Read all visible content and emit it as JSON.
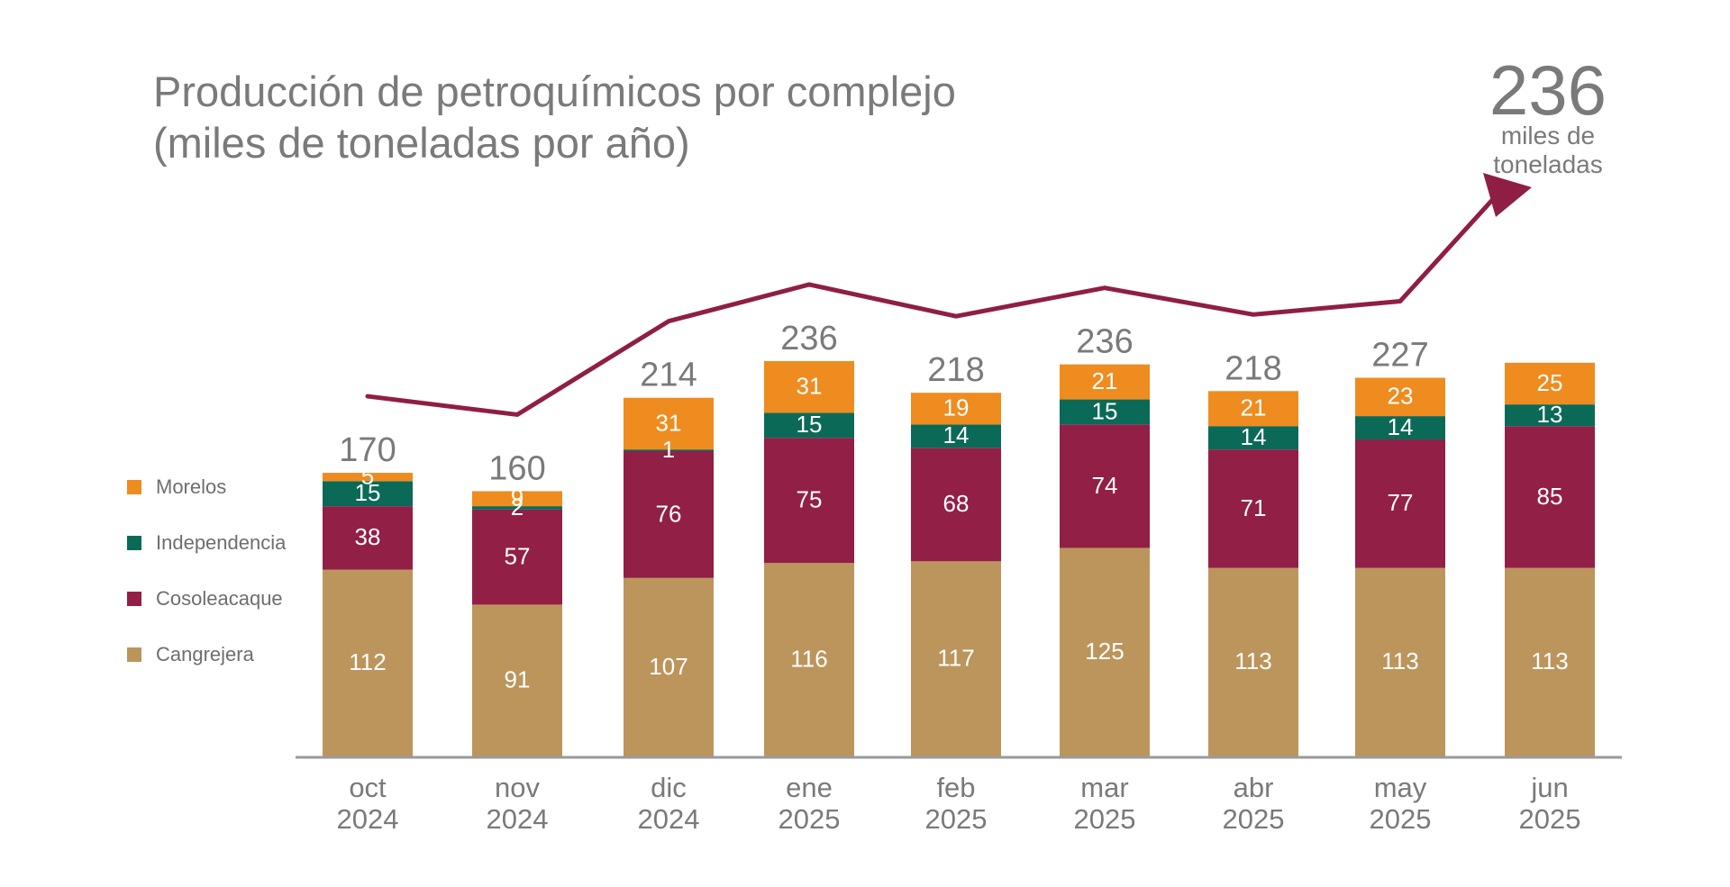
{
  "colors": {
    "Cangrejera": "#bc955c",
    "Cosoleacaque": "#921f46",
    "Independencia": "#0b6a57",
    "Morelos": "#ee8c1f",
    "trend": "#8f1e45",
    "text": "#7a7a7a",
    "axis": "#9a9a9a"
  },
  "highlight": {
    "value": "236",
    "unit_line1": "miles de",
    "unit_line2": "toneladas"
  },
  "chart_data": {
    "type": "bar",
    "stacked": true,
    "title": "Producción de petroquímicos por complejo",
    "subtitle": "(miles de toneladas por año)",
    "categories": [
      [
        "oct",
        "2024"
      ],
      [
        "nov",
        "2024"
      ],
      [
        "dic",
        "2024"
      ],
      [
        "ene",
        "2025"
      ],
      [
        "feb",
        "2025"
      ],
      [
        "mar",
        "2025"
      ],
      [
        "abr",
        "2025"
      ],
      [
        "may",
        "2025"
      ],
      [
        "jun",
        "2025"
      ]
    ],
    "series": [
      {
        "name": "Cangrejera",
        "values": [
          112,
          91,
          107,
          116,
          117,
          125,
          113,
          113,
          113
        ]
      },
      {
        "name": "Cosoleacaque",
        "values": [
          38,
          57,
          76,
          75,
          68,
          74,
          71,
          77,
          85
        ]
      },
      {
        "name": "Independencia",
        "values": [
          15,
          2,
          1,
          15,
          14,
          15,
          14,
          14,
          13
        ]
      },
      {
        "name": "Morelos",
        "values": [
          5,
          9,
          31,
          31,
          19,
          21,
          21,
          23,
          25
        ]
      }
    ],
    "totals": [
      "170",
      "160",
      "214",
      "236",
      "218",
      "236",
      "218",
      "227",
      ""
    ],
    "legend": [
      "Morelos",
      "Independencia",
      "Cosoleacaque",
      "Cangrejera"
    ],
    "legend_position": "left",
    "trend_line": true,
    "ylim": [
      0,
      250
    ],
    "grid": false
  }
}
